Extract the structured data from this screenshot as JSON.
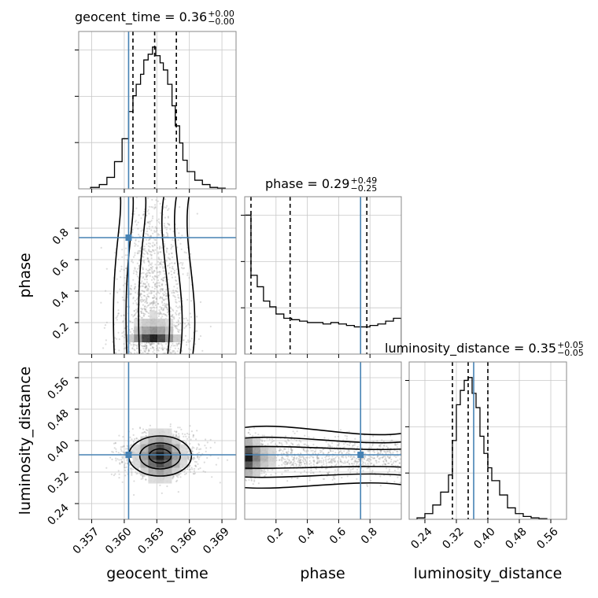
{
  "chart_data": {
    "type": "corner",
    "parameters": [
      "geocent_time",
      "phase",
      "luminosity_distance"
    ],
    "titles": [
      {
        "label": "geocent_time = 0.36",
        "plus": "+0.00",
        "minus": "−0.00"
      },
      {
        "label": "phase = 0.29",
        "plus": "+0.49",
        "minus": "−0.25"
      },
      {
        "label": "luminosity_distance = 0.35",
        "plus": "+0.05",
        "minus": "−0.05"
      }
    ],
    "axis_labels": {
      "x": [
        "geocent_time",
        "phase",
        "luminosity_distance"
      ],
      "y": [
        "phase",
        "luminosity_distance"
      ]
    },
    "ranges": [
      [
        0.3558,
        0.3703
      ],
      [
        0.0,
        1.0
      ],
      [
        0.2,
        0.6
      ]
    ],
    "ticks": {
      "geocent_time": {
        "values": [
          0.357,
          0.36,
          0.363,
          0.366,
          0.369
        ],
        "labels": [
          "0.357",
          "0.360",
          "0.363",
          "0.366",
          "0.369"
        ]
      },
      "phase": {
        "values": [
          0.2,
          0.4,
          0.6,
          0.8
        ],
        "labels": [
          "0.2",
          "0.4",
          "0.6",
          "0.8"
        ]
      },
      "luminosity_distance": {
        "values": [
          0.24,
          0.32,
          0.4,
          0.48,
          0.56
        ],
        "labels": [
          "0.24",
          "0.32",
          "0.40",
          "0.48",
          "0.56"
        ]
      }
    },
    "injection": [
      0.3604,
      0.74,
      0.364
    ],
    "quantiles": [
      [
        0.3608,
        0.3628,
        0.3648
      ],
      [
        0.04,
        0.29,
        0.78
      ],
      [
        0.31,
        0.35,
        0.4
      ]
    ],
    "histograms": [
      {
        "parameter": "geocent_time",
        "bin_edges": [
          0.3569,
          0.3577,
          0.3584,
          0.3591,
          0.3598,
          0.3604,
          0.3608,
          0.3611,
          0.3615,
          0.3618,
          0.3622,
          0.3626,
          0.3629,
          0.3633,
          0.3636,
          0.364,
          0.3644,
          0.3647,
          0.3651,
          0.3654,
          0.3658,
          0.3665,
          0.3672,
          0.3679,
          0.3686,
          0.3693
        ],
        "counts": [
          0.01,
          0.03,
          0.08,
          0.19,
          0.35,
          0.54,
          0.65,
          0.73,
          0.8,
          0.9,
          0.94,
          0.99,
          0.93,
          0.88,
          0.83,
          0.73,
          0.58,
          0.44,
          0.32,
          0.2,
          0.12,
          0.06,
          0.03,
          0.01,
          0.005
        ]
      },
      {
        "parameter": "phase",
        "bin_edges": [
          0.0,
          0.04,
          0.08,
          0.12,
          0.16,
          0.2,
          0.25,
          0.3,
          0.35,
          0.4,
          0.45,
          0.5,
          0.55,
          0.6,
          0.65,
          0.7,
          0.75,
          0.8,
          0.85,
          0.9,
          0.95,
          1.0
        ],
        "counts": [
          0.97,
          0.55,
          0.47,
          0.37,
          0.33,
          0.28,
          0.25,
          0.24,
          0.23,
          0.22,
          0.22,
          0.21,
          0.22,
          0.21,
          0.2,
          0.19,
          0.19,
          0.2,
          0.21,
          0.23,
          0.25
        ]
      },
      {
        "parameter": "luminosity_distance",
        "bin_edges": [
          0.22,
          0.24,
          0.26,
          0.28,
          0.3,
          0.31,
          0.32,
          0.33,
          0.34,
          0.35,
          0.36,
          0.37,
          0.38,
          0.39,
          0.4,
          0.41,
          0.43,
          0.45,
          0.47,
          0.49,
          0.51,
          0.53,
          0.55
        ],
        "counts": [
          0.01,
          0.04,
          0.1,
          0.19,
          0.31,
          0.55,
          0.8,
          0.9,
          0.97,
          0.99,
          0.88,
          0.78,
          0.58,
          0.46,
          0.36,
          0.27,
          0.17,
          0.08,
          0.04,
          0.02,
          0.01,
          0.005
        ]
      }
    ],
    "densities": [
      {
        "x": "geocent_time",
        "y": "phase",
        "mode": [
          0.3627,
          0.1
        ],
        "sigma": [
          0.0017,
          0.1
        ],
        "tail": [
          0.0012,
          0.22
        ]
      },
      {
        "x": "geocent_time",
        "y": "luminosity_distance",
        "mode": [
          0.3633,
          0.361
        ],
        "sigma": [
          0.0017,
          0.03
        ]
      },
      {
        "x": "phase",
        "y": "luminosity_distance",
        "mode": [
          0.04,
          0.357
        ],
        "sigma": [
          0.22,
          0.025
        ],
        "uniform_x": true
      }
    ],
    "injection_color": "#4682b4",
    "grid": true
  }
}
